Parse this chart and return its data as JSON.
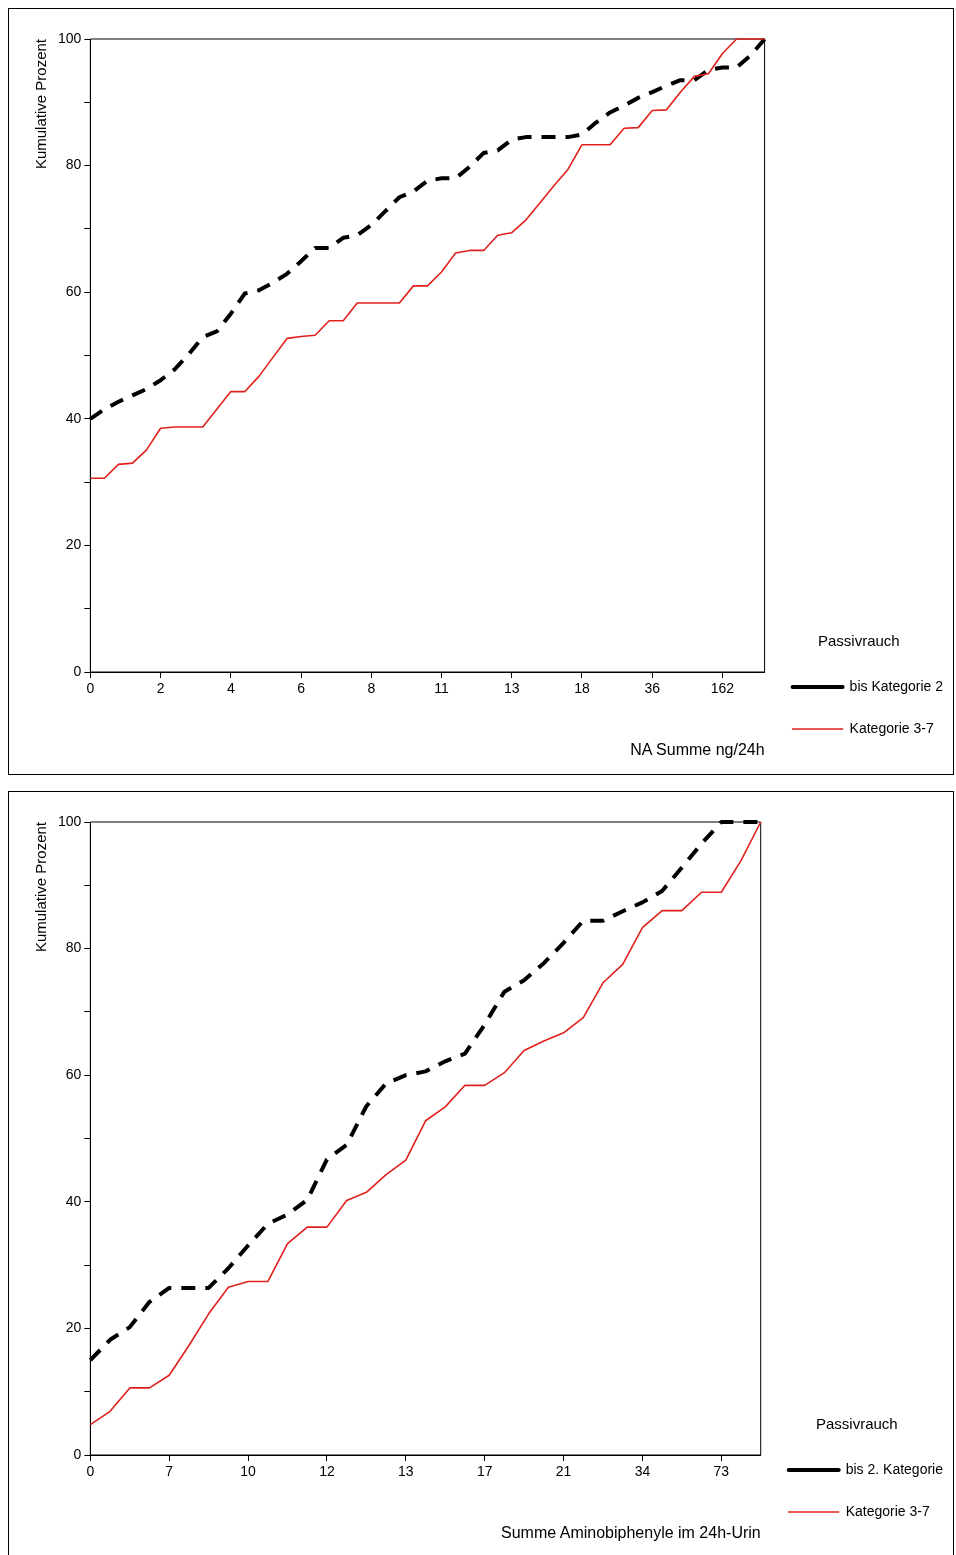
{
  "chart_data": [
    {
      "type": "line",
      "xlabel": "NA Summe ng/24h",
      "ylabel": "Kumulative Prozent",
      "legend_title": "Passivrauch",
      "legend": "right",
      "grid": false,
      "ylim": [
        0,
        100
      ],
      "categories": [
        "0",
        null,
        null,
        null,
        null,
        "2",
        null,
        null,
        null,
        null,
        "4",
        null,
        null,
        null,
        null,
        "6",
        null,
        null,
        null,
        null,
        "8",
        null,
        null,
        null,
        null,
        "11",
        null,
        null,
        null,
        null,
        "13",
        null,
        null,
        null,
        null,
        "18",
        null,
        null,
        null,
        null,
        "36",
        null,
        null,
        null,
        null,
        "162",
        null,
        null,
        null
      ],
      "yticks": [
        0,
        {
          "value": 10,
          "label": null
        },
        20,
        {
          "value": 30,
          "label": null
        },
        40,
        {
          "value": 50,
          "label": null
        },
        60,
        {
          "value": 70,
          "label": null
        },
        80,
        {
          "value": 90,
          "label": null
        },
        100
      ],
      "series": [
        {
          "name": "bis Kategorie 2",
          "color": "#000000",
          "line_style": "dashed",
          "values": [
            40,
            41.5,
            42.7,
            43.7,
            44.7,
            46.1,
            47.8,
            50.2,
            52.9,
            53.8,
            56.6,
            59.8,
            60.3,
            61.5,
            62.9,
            64.9,
            67,
            67,
            68.6,
            69,
            70.6,
            72.8,
            75,
            75.9,
            77.6,
            78,
            78,
            79.8,
            82,
            82.4,
            84.1,
            84.5,
            84.5,
            84.5,
            84.5,
            84.9,
            86.8,
            88.4,
            89.5,
            90.7,
            91.6,
            92.6,
            93.5,
            93.5,
            95.1,
            95.5,
            95.5,
            97.4,
            100
          ]
        },
        {
          "name": "Kategorie 3-7",
          "color": "#e0201c",
          "line_style": "solid",
          "values": [
            30.6,
            30.6,
            32.8,
            33,
            35.1,
            38.5,
            38.7,
            38.7,
            38.7,
            41.5,
            44.3,
            44.3,
            46.7,
            49.7,
            52.7,
            53,
            53.2,
            55.5,
            55.5,
            58.3,
            58.3,
            58.3,
            58.3,
            61,
            61,
            63.2,
            66.2,
            66.6,
            66.6,
            69,
            69.4,
            71.4,
            74.1,
            76.8,
            79.4,
            83.3,
            83.3,
            83.3,
            85.9,
            86,
            88.7,
            88.8,
            91.6,
            94.1,
            94.5,
            97.7,
            100,
            100,
            100
          ]
        }
      ]
    },
    {
      "type": "line",
      "xlabel": "Summe Aminobiphenyle im 24h-Urin",
      "ylabel": "Kumulative Prozent",
      "legend_title": "Passivrauch",
      "legend": "right",
      "grid": false,
      "ylim": [
        0,
        100
      ],
      "categories": [
        "0",
        null,
        null,
        null,
        "7",
        null,
        null,
        null,
        "10",
        null,
        null,
        null,
        "12",
        null,
        null,
        null,
        "13",
        null,
        null,
        null,
        "17",
        null,
        null,
        null,
        "21",
        null,
        null,
        null,
        "34",
        null,
        null,
        null,
        "73",
        null,
        null
      ],
      "yticks": [
        0,
        {
          "value": 10,
          "label": null
        },
        20,
        {
          "value": 30,
          "label": null
        },
        40,
        {
          "value": 50,
          "label": null
        },
        60,
        {
          "value": 70,
          "label": null
        },
        80,
        {
          "value": 90,
          "label": null
        },
        100
      ],
      "series": [
        {
          "name": "bis 2. Kategorie",
          "color": "#000000",
          "line_style": "dashed",
          "values": [
            15,
            18.2,
            20.2,
            24.2,
            26.4,
            26.4,
            26.4,
            29.5,
            33.1,
            36.5,
            38,
            40.3,
            46.7,
            49,
            55.1,
            58.7,
            60,
            60.6,
            62.2,
            63.4,
            68,
            73.2,
            75,
            77.7,
            80.9,
            84.4,
            84.4,
            85.9,
            87.3,
            89.1,
            92.8,
            96.6,
            100,
            100,
            100
          ]
        },
        {
          "name": "Kategorie 3-7",
          "color": "#e0201c",
          "line_style": "solid",
          "values": [
            4.8,
            6.9,
            10.6,
            10.6,
            12.6,
            17.3,
            22.3,
            26.5,
            27.4,
            27.4,
            33.4,
            36,
            36,
            40.2,
            41.5,
            44.3,
            46.6,
            52.8,
            55,
            58.4,
            58.4,
            60.4,
            63.9,
            65.4,
            66.7,
            69.1,
            74.6,
            77.5,
            83.3,
            86,
            86,
            88.9,
            88.9,
            93.9,
            100
          ]
        }
      ]
    }
  ]
}
